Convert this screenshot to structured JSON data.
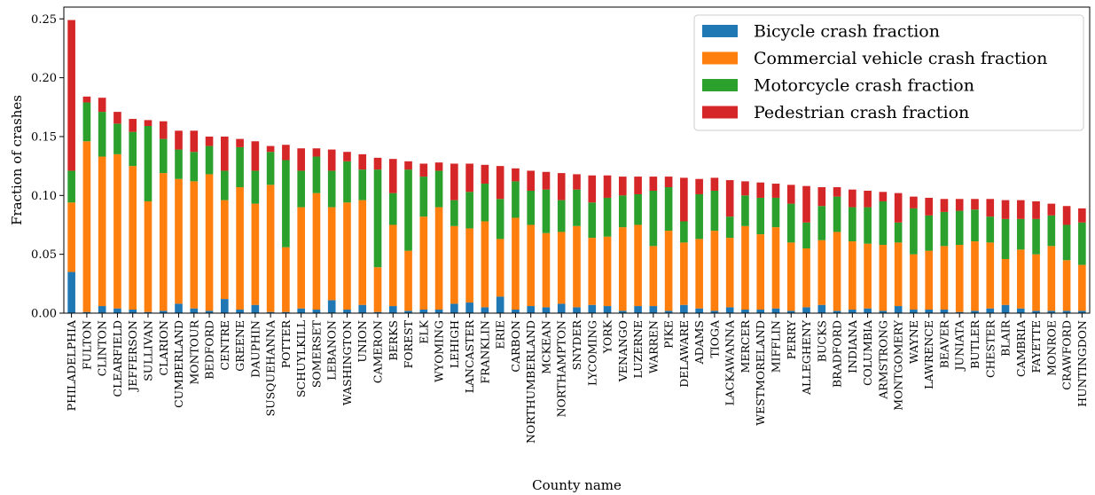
{
  "chart_data": {
    "type": "bar",
    "stacked": true,
    "xlabel": "County name",
    "ylabel": "Fraction of crashes",
    "ylim": [
      0,
      0.26
    ],
    "yticks": [
      "0.00",
      "0.05",
      "0.10",
      "0.15",
      "0.20",
      "0.25"
    ],
    "grid": false,
    "legend_position": "top-right",
    "categories": [
      "PHILADELPHIA",
      "FULTON",
      "CLINTON",
      "CLEARFIELD",
      "JEFFERSON",
      "SULLIVAN",
      "CLARION",
      "CUMBERLAND",
      "MONTOUR",
      "BEDFORD",
      "CENTRE",
      "GREENE",
      "DAUPHIN",
      "SUSQUEHANNA",
      "POTTER",
      "SCHUYLKILL",
      "SOMERSET",
      "LEBANON",
      "WASHINGTON",
      "UNION",
      "CAMERON",
      "BERKS",
      "FOREST",
      "ELK",
      "WYOMING",
      "LEHIGH",
      "LANCASTER",
      "FRANKLIN",
      "ERIE",
      "CARBON",
      "NORTHUMBERLAND",
      "MCKEAN",
      "NORTHAMPTON",
      "SNYDER",
      "LYCOMING",
      "YORK",
      "VENANGO",
      "LUZERNE",
      "WARREN",
      "PIKE",
      "DELAWARE",
      "ADAMS",
      "TIOGA",
      "LACKAWANNA",
      "MERCER",
      "WESTMORELAND",
      "MIFFLIN",
      "PERRY",
      "ALLEGHENY",
      "BUCKS",
      "BRADFORD",
      "INDIANA",
      "COLUMBIA",
      "ARMSTRONG",
      "MONTGOMERY",
      "WAYNE",
      "LAWRENCE",
      "BEAVER",
      "JUNIATA",
      "BUTLER",
      "CHESTER",
      "BLAIR",
      "CAMBRIA",
      "FAYETTE",
      "MONROE",
      "CRAWFORD",
      "HUNTINGDON"
    ],
    "series": [
      {
        "name": "Bicycle crash fraction",
        "color": "#1f77b4",
        "values": [
          0.035,
          0.001,
          0.006,
          0.004,
          0.003,
          0.001,
          0.002,
          0.008,
          0.004,
          0.002,
          0.012,
          0.003,
          0.007,
          0.001,
          0.001,
          0.004,
          0.003,
          0.011,
          0.003,
          0.007,
          0.001,
          0.006,
          0.002,
          0.003,
          0.003,
          0.008,
          0.009,
          0.005,
          0.014,
          0.003,
          0.006,
          0.005,
          0.008,
          0.005,
          0.007,
          0.006,
          0.002,
          0.006,
          0.006,
          0.002,
          0.007,
          0.004,
          0.002,
          0.005,
          0.003,
          0.003,
          0.004,
          0.002,
          0.005,
          0.007,
          0.002,
          0.003,
          0.004,
          0.002,
          0.006,
          0.003,
          0.003,
          0.003,
          0.001,
          0.002,
          0.004,
          0.007,
          0.004,
          0.002,
          0.002,
          0.002,
          0.002
        ]
      },
      {
        "name": "Commercial vehicle crash fraction",
        "color": "#ff7f0e",
        "values": [
          0.059,
          0.145,
          0.127,
          0.131,
          0.122,
          0.094,
          0.117,
          0.106,
          0.108,
          0.116,
          0.084,
          0.104,
          0.086,
          0.108,
          0.055,
          0.086,
          0.099,
          0.079,
          0.091,
          0.089,
          0.038,
          0.069,
          0.051,
          0.079,
          0.087,
          0.066,
          0.063,
          0.073,
          0.049,
          0.078,
          0.069,
          0.063,
          0.061,
          0.069,
          0.057,
          0.059,
          0.071,
          0.069,
          0.051,
          0.068,
          0.053,
          0.059,
          0.068,
          0.059,
          0.071,
          0.064,
          0.069,
          0.058,
          0.05,
          0.055,
          0.067,
          0.058,
          0.055,
          0.056,
          0.054,
          0.047,
          0.05,
          0.054,
          0.057,
          0.059,
          0.056,
          0.039,
          0.05,
          0.048,
          0.055,
          0.043,
          0.039
        ]
      },
      {
        "name": "Motorcycle crash fraction",
        "color": "#2ca02c",
        "values": [
          0.027,
          0.033,
          0.038,
          0.026,
          0.029,
          0.064,
          0.029,
          0.025,
          0.025,
          0.024,
          0.025,
          0.034,
          0.028,
          0.028,
          0.074,
          0.031,
          0.031,
          0.031,
          0.035,
          0.026,
          0.083,
          0.027,
          0.069,
          0.034,
          0.031,
          0.022,
          0.031,
          0.032,
          0.034,
          0.031,
          0.029,
          0.037,
          0.027,
          0.031,
          0.03,
          0.033,
          0.027,
          0.026,
          0.047,
          0.037,
          0.018,
          0.038,
          0.034,
          0.018,
          0.026,
          0.031,
          0.025,
          0.033,
          0.022,
          0.029,
          0.03,
          0.029,
          0.031,
          0.037,
          0.017,
          0.039,
          0.03,
          0.029,
          0.029,
          0.027,
          0.022,
          0.034,
          0.026,
          0.03,
          0.026,
          0.03,
          0.036
        ]
      },
      {
        "name": "Pedestrian crash fraction",
        "color": "#d62728",
        "values": [
          0.128,
          0.005,
          0.012,
          0.01,
          0.011,
          0.005,
          0.015,
          0.016,
          0.018,
          0.008,
          0.029,
          0.007,
          0.025,
          0.005,
          0.013,
          0.019,
          0.007,
          0.018,
          0.008,
          0.013,
          0.01,
          0.029,
          0.007,
          0.011,
          0.007,
          0.031,
          0.024,
          0.016,
          0.028,
          0.011,
          0.017,
          0.015,
          0.023,
          0.013,
          0.023,
          0.019,
          0.016,
          0.015,
          0.012,
          0.009,
          0.037,
          0.013,
          0.011,
          0.031,
          0.012,
          0.013,
          0.012,
          0.016,
          0.031,
          0.016,
          0.008,
          0.015,
          0.014,
          0.008,
          0.025,
          0.01,
          0.015,
          0.011,
          0.01,
          0.009,
          0.015,
          0.016,
          0.016,
          0.015,
          0.01,
          0.016,
          0.012
        ]
      }
    ]
  }
}
